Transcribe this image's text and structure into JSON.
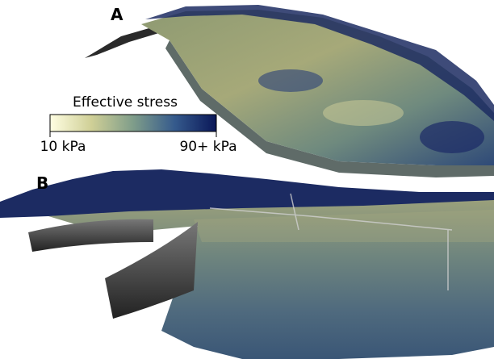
{
  "panels": [
    {
      "label": "A"
    },
    {
      "label": "B"
    }
  ],
  "colorbar": {
    "title": "Effective stress",
    "min_label": "10 kPa",
    "max_label": "90+ kPa"
  }
}
